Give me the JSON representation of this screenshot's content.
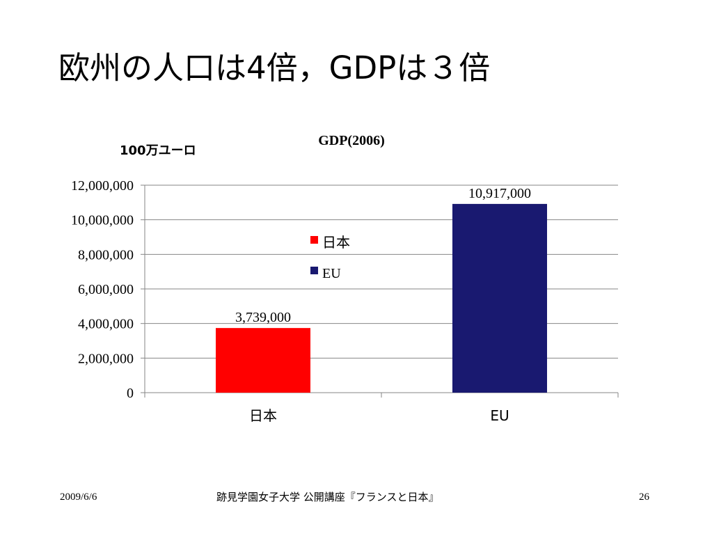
{
  "slide": {
    "title": "欧州の人口は4倍，GDPは３倍"
  },
  "chart_data": {
    "type": "bar",
    "title": "GDP(2006)",
    "unit_label": "100万ユーロ",
    "categories": [
      "日本",
      "EU"
    ],
    "series": [
      {
        "name": "日本",
        "values": [
          3739000,
          null
        ],
        "color": "#ff0000"
      },
      {
        "name": "EU",
        "values": [
          null,
          10917000
        ],
        "color": "#191970"
      }
    ],
    "data_labels": [
      "3,739,000",
      "10,917,000"
    ],
    "yticks": [
      "0",
      "2,000,000",
      "4,000,000",
      "6,000,000",
      "8,000,000",
      "10,000,000",
      "12,000,000"
    ],
    "ytick_values": [
      0,
      2000000,
      4000000,
      6000000,
      8000000,
      10000000,
      12000000
    ],
    "ylim": [
      0,
      12000000
    ],
    "grid": true,
    "legend_position": "center"
  },
  "footer": {
    "date": "2009/6/6",
    "center": "跡見学園女子大学 公開講座『フランスと日本』",
    "page": "26"
  }
}
